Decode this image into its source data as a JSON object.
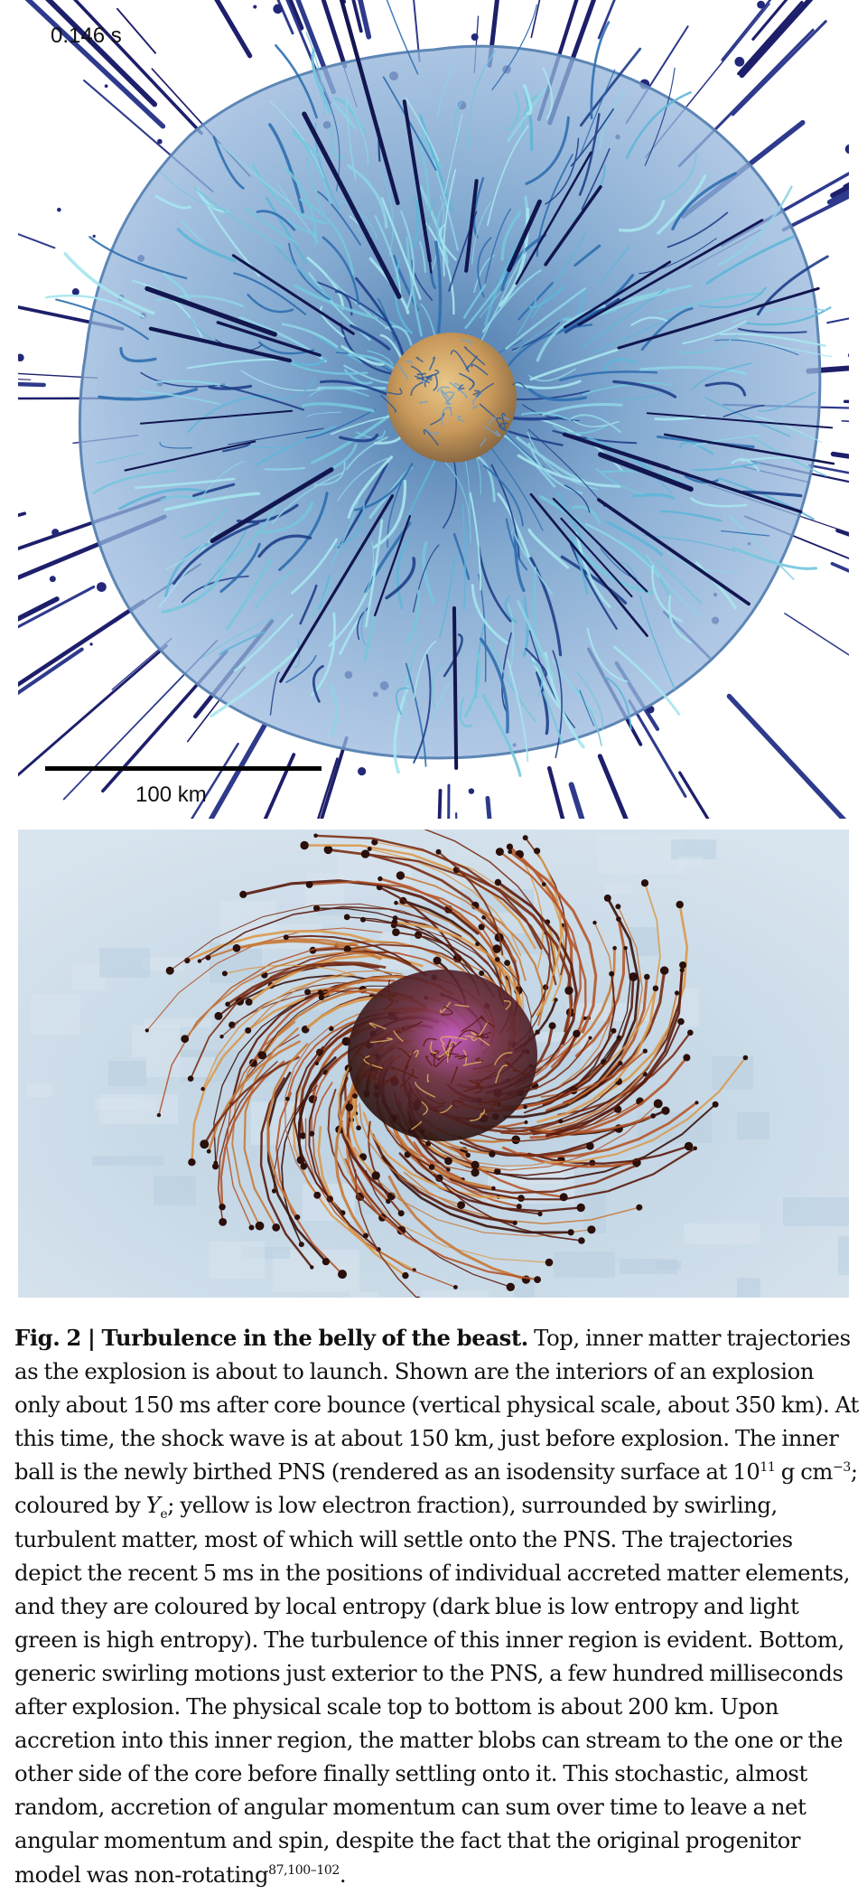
{
  "top_panel": {
    "time_label": "0.146 s",
    "scale_label": "100 km"
  },
  "caption": {
    "fig_label": "Fig. 2",
    "separator": " | ",
    "title": "Turbulence in the belly of the beast.",
    "text_1": " Top, inner matter trajectories as the explosion is about to launch. Shown are the interiors of an explosion only about 150 ms after core bounce (vertical physical scale, about 350 km). At this time, the shock wave is at about 150 km, just before explosion. The inner ball is the newly birthed PNS (rendered as an isodensity surface at 10",
    "sup_density": "11",
    "text_2": " g cm",
    "sup_cm": "−3",
    "text_3": "; coloured by ",
    "ye_symbol": "Y",
    "ye_sub": "e",
    "text_4": "; yellow is low electron fraction), surrounded by swirling, turbulent matter, most of which will settle onto the PNS. The trajectories depict the recent 5 ms in the positions of individual accreted matter elements, and they are coloured by local entropy (dark blue is low entropy and light green is high entropy). The turbulence of this inner region is evident. Bottom, generic swirling motions just exterior to the PNS, a few hundred milliseconds after explosion. The physical scale top to bottom is about 200 km. Upon accretion into this inner region, the matter blobs can stream to the one or the other side of the core before finally settling onto it. This stochastic, almost random, accretion of angular momentum can sum over time to leave a net angular momentum and spin, despite the fact that the original progenitor model was non-rotating",
    "refs": "87,100–102",
    "end": "."
  }
}
